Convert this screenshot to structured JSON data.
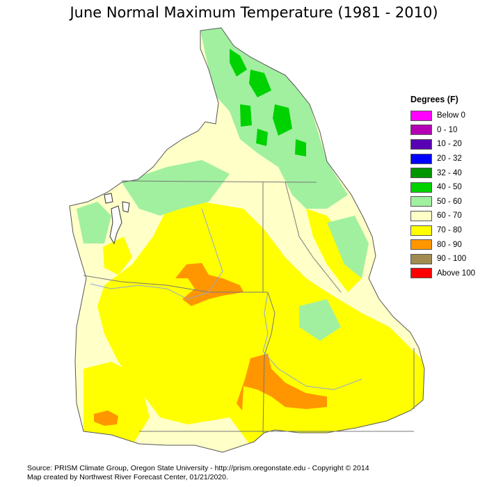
{
  "title": "June Normal Maximum Temperature (1981 - 2010)",
  "legend": {
    "title": "Degrees (F)",
    "items": [
      {
        "label": "Below 0",
        "color": "#ff00ff"
      },
      {
        "label": "0 - 10",
        "color": "#b400b4"
      },
      {
        "label": "10 - 20",
        "color": "#5a00b4"
      },
      {
        "label": "20 - 32",
        "color": "#0000ff"
      },
      {
        "label": "32 - 40",
        "color": "#009600"
      },
      {
        "label": "40 - 50",
        "color": "#00d200"
      },
      {
        "label": "50 - 60",
        "color": "#a0f0a0"
      },
      {
        "label": "60 - 70",
        "color": "#ffffc8"
      },
      {
        "label": "70 - 80",
        "color": "#ffff00"
      },
      {
        "label": "80 - 90",
        "color": "#ff9600"
      },
      {
        "label": "90 - 100",
        "color": "#a08c50"
      },
      {
        "label": "Above 100",
        "color": "#ff0000"
      }
    ]
  },
  "footer": {
    "source": "Source: PRISM Climate Group, Oregon State University - http://prism.oregonstate.edu - Copyright © 2014",
    "credit": "Map created by Northwest River Forecast Center, 01/21/2020."
  }
}
